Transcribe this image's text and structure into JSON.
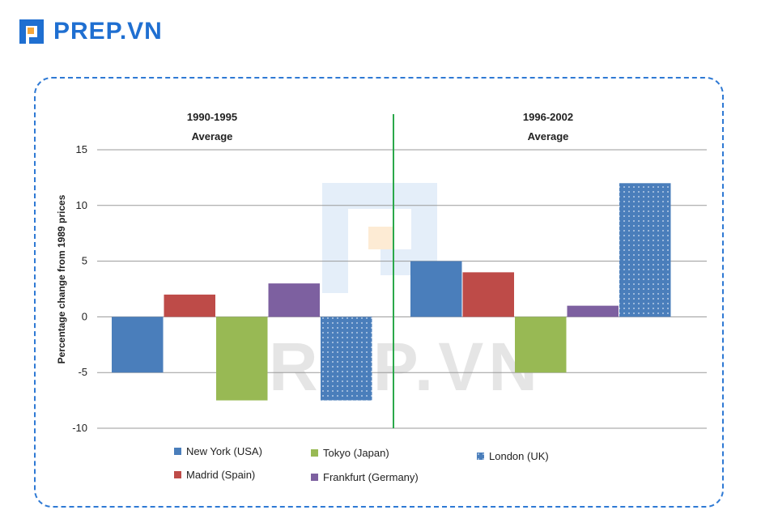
{
  "brand": {
    "name": "PREP.VN",
    "logo_icon": "prep-logo-icon",
    "color": "#1f6fd1"
  },
  "watermark": {
    "text": "PREP.VN"
  },
  "chart_data": {
    "type": "bar",
    "title": "",
    "xlabel": "",
    "ylabel": "Percentage change from 1989 prices",
    "ylim": [
      -10,
      15
    ],
    "yticks": [
      15,
      10,
      5,
      0,
      -5,
      -10
    ],
    "grid": true,
    "legend_position": "bottom",
    "categories": [
      {
        "line1": "1990-1995",
        "line2": "Average"
      },
      {
        "line1": "1996-2002",
        "line2": "Average"
      }
    ],
    "series": [
      {
        "name": "New York (USA)",
        "color": "#4a7ebb",
        "pattern": "solid",
        "values": [
          -5,
          5
        ]
      },
      {
        "name": "Madrid (Spain)",
        "color": "#be4b48",
        "pattern": "solid",
        "values": [
          2,
          4
        ]
      },
      {
        "name": "Tokyo (Japan)",
        "color": "#98b954",
        "pattern": "solid",
        "values": [
          -7.5,
          -5
        ]
      },
      {
        "name": "Frankfurt (Germany)",
        "color": "#7d60a0",
        "pattern": "solid",
        "values": [
          3,
          1
        ]
      },
      {
        "name": "London (UK)",
        "color": "#4a7ebb",
        "pattern": "dotted",
        "values": [
          -7.5,
          12
        ]
      }
    ],
    "divider_color": "#2aa84a"
  }
}
